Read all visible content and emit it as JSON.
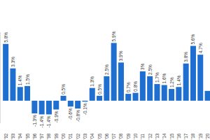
{
  "chart_data": {
    "type": "bar",
    "categories": [
      "'92",
      "'93",
      "'94",
      "'95",
      "'96",
      "'97",
      "'98",
      "'99",
      "'00",
      "'01",
      "'02",
      "'03",
      "'04",
      "'05",
      "'06",
      "'07",
      "'08",
      "'09",
      "'10",
      "'11",
      "'12",
      "'13",
      "'14",
      "'15",
      "'16",
      "'17",
      "'18",
      "'19",
      "'20"
    ],
    "values": [
      5.8,
      3.3,
      1.4,
      1.5,
      -1.3,
      -1.4,
      -1.4,
      -0.9,
      0.5,
      -0.6,
      -0.8,
      -0.1,
      1.3,
      0.5,
      2.5,
      5.9,
      3.9,
      0.7,
      0.8,
      3,
      2.5,
      1.7,
      1.6,
      1.2,
      1.4,
      3.8,
      5.6,
      4.7,
      1.0
    ],
    "value_labels": [
      "5.8%",
      "3.3%",
      "1.4%",
      "1.5%",
      "-1.3%",
      "-1.4%",
      "-1.4%",
      "-0.9%",
      "0.5%",
      "-0.6%",
      "-0.8%",
      "-0.1%",
      "1.3%",
      "0.5%",
      "2.5%",
      "5.9%",
      "3.9%",
      "0.7%",
      "0.8%",
      "3%",
      "2.5%",
      "1.7%",
      "1.6%",
      "1.2%",
      "1.4%",
      "3.8%",
      "5.6%",
      "4.7%",
      null
    ],
    "color": "#1f6fd1",
    "ylim": [
      -2.3,
      7
    ],
    "grid": false,
    "data_labels": true,
    "tick_labels": "x"
  }
}
